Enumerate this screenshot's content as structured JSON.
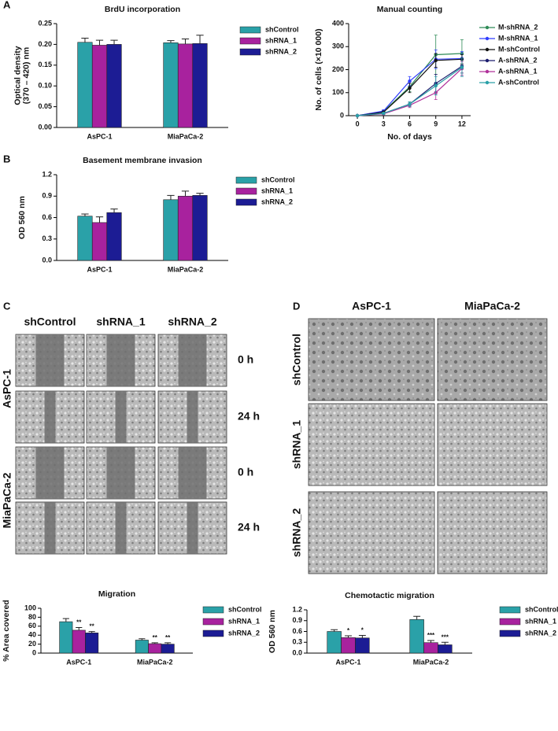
{
  "panel_letters": [
    "A",
    "B",
    "C",
    "D"
  ],
  "chart_data": [
    {
      "type": "bar",
      "title": "BrdU incorporation",
      "ylabel": [
        "Optical density",
        "(370 – 420) nm"
      ],
      "categories": [
        "AsPC-1",
        "MiaPaCa-2"
      ],
      "series": [
        {
          "name": "shControl",
          "color": "#2aa1a8",
          "values": [
            0.205,
            0.204
          ],
          "errors": [
            0.01,
            0.005
          ]
        },
        {
          "name": "shRNA_1",
          "color": "#a8229e",
          "values": [
            0.198,
            0.201
          ],
          "errors": [
            0.012,
            0.012
          ]
        },
        {
          "name": "shRNA_2",
          "color": "#1c1c94",
          "values": [
            0.2,
            0.202
          ],
          "errors": [
            0.01,
            0.02
          ]
        }
      ],
      "ylim": [
        0,
        0.25
      ],
      "yticks": [
        {
          "value": 0,
          "label": "0.00"
        },
        0.05,
        {
          "value": 0.1,
          "label": "0.10"
        },
        0.15,
        {
          "value": 0.2,
          "label": "0.20"
        },
        0.25
      ]
    },
    {
      "type": "line",
      "title": "Manual counting",
      "xlabel": "No. of days",
      "ylabel": "No. of cells (×10 000)",
      "x": [
        0,
        3,
        6,
        9,
        12
      ],
      "series": [
        {
          "name": "M-shRNA_2",
          "color": "#2e8b57",
          "values": [
            0,
            18,
            125,
            265,
            270
          ],
          "errors": [
            0,
            5,
            20,
            85,
            60
          ]
        },
        {
          "name": "M-shRNA_1",
          "color": "#2f3cff",
          "values": [
            0,
            20,
            150,
            245,
            248
          ],
          "errors": [
            0,
            5,
            20,
            40,
            30
          ]
        },
        {
          "name": "M-shControl",
          "color": "#111111",
          "values": [
            0,
            15,
            120,
            240,
            245
          ],
          "errors": [
            0,
            5,
            20,
            30,
            20
          ]
        },
        {
          "name": "A-shRNA_2",
          "color": "#1c1c6e",
          "values": [
            0,
            10,
            50,
            140,
            215
          ],
          "errors": [
            0,
            3,
            10,
            40,
            30
          ]
        },
        {
          "name": "A-shRNA_1",
          "color": "#b0309a",
          "values": [
            0,
            8,
            45,
            100,
            205
          ],
          "errors": [
            0,
            3,
            10,
            30,
            30
          ]
        },
        {
          "name": "A-shControl",
          "color": "#2aa0a8",
          "values": [
            0,
            10,
            50,
            130,
            210
          ],
          "errors": [
            0,
            3,
            10,
            40,
            40
          ]
        }
      ],
      "xlim": [
        -1,
        13
      ],
      "xticks": [
        0,
        3,
        6,
        9,
        12
      ],
      "ylim": [
        0,
        400
      ],
      "yticks": [
        0,
        100,
        200,
        300,
        400
      ]
    },
    {
      "type": "bar",
      "title": "Basement membrane invasion",
      "ylabel": [
        "OD 560 nm"
      ],
      "categories": [
        "AsPC-1",
        "MiaPaCa-2"
      ],
      "series": [
        {
          "name": "shControl",
          "color": "#2aa1a8",
          "values": [
            0.62,
            0.85
          ],
          "errors": [
            0.03,
            0.06
          ]
        },
        {
          "name": "shRNA_1",
          "color": "#a8229e",
          "values": [
            0.53,
            0.9
          ],
          "errors": [
            0.08,
            0.07
          ]
        },
        {
          "name": "shRNA_2",
          "color": "#1c1c94",
          "values": [
            0.67,
            0.91
          ],
          "errors": [
            0.05,
            0.03
          ]
        }
      ],
      "ylim": [
        0,
        1.2
      ],
      "yticks": [
        {
          "value": 0,
          "label": "0.0"
        },
        0.3,
        0.6,
        0.9,
        1.2
      ]
    },
    {
      "type": "bar",
      "title": "Migration",
      "ylabel": [
        "% Area covered"
      ],
      "categories": [
        "AsPC-1",
        "MiaPaCa-2"
      ],
      "series": [
        {
          "name": "shControl",
          "color": "#2aa1a8",
          "values": [
            70,
            29
          ],
          "errors": [
            7,
            3
          ]
        },
        {
          "name": "shRNA_1",
          "color": "#a8229e",
          "values": [
            51,
            21
          ],
          "errors": [
            6,
            2
          ],
          "significance": [
            "**",
            "**"
          ]
        },
        {
          "name": "shRNA_2",
          "color": "#1c1c94",
          "values": [
            45,
            20
          ],
          "errors": [
            3,
            3
          ],
          "significance": [
            "**",
            "**"
          ]
        }
      ],
      "ylim": [
        0,
        100
      ],
      "yticks": [
        0,
        20,
        40,
        60,
        80,
        100
      ]
    },
    {
      "type": "bar",
      "title": "Chemotactic migration",
      "ylabel": [
        "OD 560 nm"
      ],
      "categories": [
        "AsPC-1",
        "MiaPaCa-2"
      ],
      "series": [
        {
          "name": "shControl",
          "color": "#2aa1a8",
          "values": [
            0.6,
            0.93
          ],
          "errors": [
            0.05,
            0.09
          ]
        },
        {
          "name": "shRNA_1",
          "color": "#a8229e",
          "values": [
            0.43,
            0.29
          ],
          "errors": [
            0.05,
            0.06
          ],
          "significance": [
            "*",
            "***"
          ]
        },
        {
          "name": "shRNA_2",
          "color": "#1c1c94",
          "values": [
            0.42,
            0.23
          ],
          "errors": [
            0.07,
            0.07
          ],
          "significance": [
            "*",
            "***"
          ]
        }
      ],
      "ylim": [
        0,
        1.2
      ],
      "yticks": [
        {
          "value": 0,
          "label": "0.0"
        },
        0.3,
        0.6,
        0.9,
        1.2
      ]
    }
  ],
  "scratch_assay": {
    "columns": [
      "shControl",
      "shRNA_1",
      "shRNA_2"
    ],
    "rows": [
      "AsPC-1",
      "MiaPaCa-2"
    ],
    "times": [
      "0 h",
      "24 h",
      "0 h",
      "24 h"
    ]
  },
  "chemotaxis_images": {
    "columns": [
      "AsPC-1",
      "MiaPaCa-2"
    ],
    "rows": [
      "shControl",
      "shRNA_1",
      "shRNA_2"
    ]
  }
}
